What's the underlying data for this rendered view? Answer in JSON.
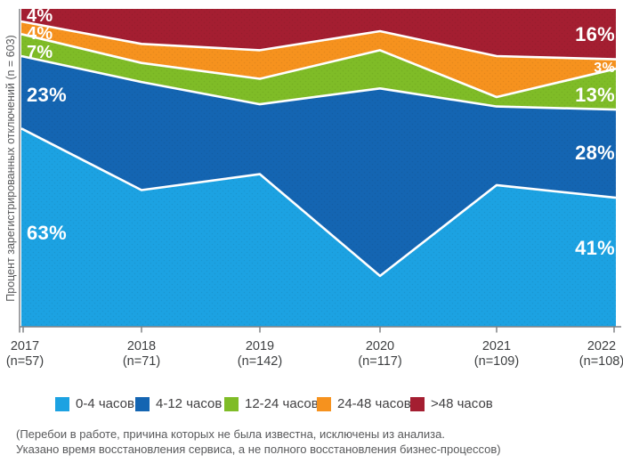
{
  "y_axis_label": "Процент зарегистрированных отключений (n = 603)",
  "footnote": {
    "line1": "(Перебои в работе, причина которых не была известна, исключены из анализа.",
    "line2": "Указано время восстановления сервиса, а не полного восстановления бизнес-процессов)"
  },
  "chart_data": {
    "type": "area",
    "stacked": true,
    "unit": "%",
    "ylabel": "Процент зарегистрированных отключений (n = 603)",
    "ylim": [
      0,
      100
    ],
    "grid": false,
    "legend_position": "bottom",
    "x": [
      "2017",
      "2018",
      "2019",
      "2020",
      "2021",
      "2022"
    ],
    "x_labels": [
      {
        "year": "2017",
        "n": "(n=57)"
      },
      {
        "year": "2018",
        "n": "(n=71)"
      },
      {
        "year": "2019",
        "n": "(n=142)"
      },
      {
        "year": "2020",
        "n": "(n=117)"
      },
      {
        "year": "2021",
        "n": "(n=109)"
      },
      {
        "year": "2022",
        "n": "(n=108)"
      }
    ],
    "series": [
      {
        "name": "0-4 часов",
        "color": "#1CA2E2",
        "values": [
          63,
          43,
          48,
          16,
          45,
          41
        ],
        "label_2017": "63%",
        "label_2022": "41%"
      },
      {
        "name": "4-12 часов",
        "color": "#1465B2",
        "values": [
          23,
          34,
          22,
          59,
          25,
          28
        ],
        "label_2017": "23%",
        "label_2022": "28%"
      },
      {
        "name": "12-24 часов",
        "color": "#7FBC27",
        "values": [
          7,
          6,
          8,
          12,
          3,
          13
        ],
        "label_2017": "7%",
        "label_2022": "13%"
      },
      {
        "name": "24-48 часов",
        "color": "#F6921E",
        "values": [
          4,
          6,
          9,
          6,
          13,
          3
        ],
        "label_2017": "4%",
        "label_2022": "3%"
      },
      {
        "name": ">48 часов",
        "color": "#A41E31",
        "values": [
          4,
          11,
          13,
          7,
          15,
          16
        ],
        "label_2017": "4%",
        "label_2022": "16%"
      }
    ],
    "axis_color": "#808285",
    "separator_color": "#FFFFFF"
  }
}
